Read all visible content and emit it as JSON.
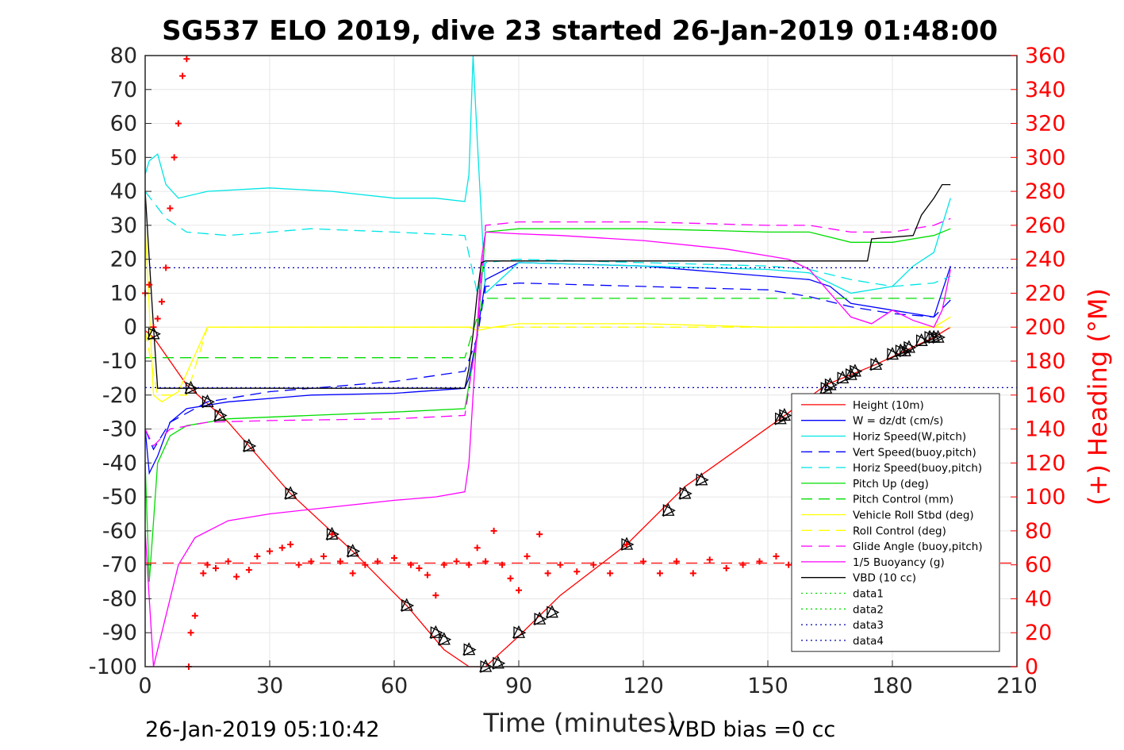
{
  "chart_data": {
    "type": "line",
    "title": "SG537 ELO 2019, dive 23 started 26-Jan-2019 01:48:00",
    "xlabel": "Time (minutes)",
    "ylabel_right": "(+) Heading (°M)",
    "xlim": [
      0,
      210
    ],
    "ylim": [
      -100,
      80
    ],
    "ylim_right": [
      0,
      360
    ],
    "x_ticks": [
      "0",
      "30",
      "60",
      "90",
      "120",
      "150",
      "180",
      "210"
    ],
    "y_ticks": [
      "-100",
      "-90",
      "-80",
      "-70",
      "-60",
      "-50",
      "-40",
      "-30",
      "-20",
      "-10",
      "0",
      "10",
      "20",
      "30",
      "40",
      "50",
      "60",
      "70",
      "80"
    ],
    "y_ticks_right": [
      "0",
      "20",
      "40",
      "60",
      "80",
      "100",
      "120",
      "140",
      "160",
      "180",
      "200",
      "220",
      "240",
      "260",
      "280",
      "300",
      "320",
      "340",
      "360"
    ],
    "grid": true,
    "legend_position": "bottom-right",
    "footer_left": "26-Jan-2019 05:10:42",
    "footer_right": "VBD bias =0 cc",
    "series": [
      {
        "name": "Height (10m)",
        "color": "#ff0000",
        "dash": "solid",
        "x": [
          0,
          2,
          10,
          20,
          35,
          50,
          63,
          72,
          78,
          82,
          90,
          100,
          116,
          130,
          153,
          164,
          176,
          183,
          190,
          194
        ],
        "y": [
          -1,
          -3,
          -17,
          -28,
          -49,
          -66,
          -82,
          -95,
          -100,
          -100,
          -91,
          -79,
          -64,
          -47,
          -27,
          -17,
          -11,
          -7,
          -3,
          0
        ]
      },
      {
        "name": "W = dz/dt (cm/s)",
        "color": "#0000ff",
        "dash": "solid",
        "x": [
          0,
          1,
          3,
          6,
          10,
          20,
          40,
          60,
          77,
          78,
          80,
          82,
          90,
          120,
          150,
          160,
          165,
          170,
          180,
          190,
          194
        ],
        "y": [
          -30,
          -43,
          -38,
          -28,
          -24,
          -22,
          -20,
          -19.5,
          -18,
          -15,
          -2,
          14,
          19,
          18,
          15,
          14,
          12,
          7,
          5,
          3,
          18
        ]
      },
      {
        "name": "Horiz Speed(W,pitch)",
        "color": "#00e5e5",
        "dash": "solid",
        "x": [
          0,
          1,
          3,
          5,
          8,
          15,
          30,
          45,
          60,
          70,
          77,
          78,
          79,
          80,
          82,
          90,
          120,
          150,
          160,
          170,
          180,
          185,
          190,
          194
        ],
        "y": [
          45,
          49,
          51,
          42,
          38,
          40,
          41,
          40,
          38,
          38,
          37,
          45,
          80,
          55,
          10,
          19,
          18,
          17,
          16,
          10,
          12,
          18,
          22,
          38
        ]
      },
      {
        "name": "Vert Speed(buoy,pitch)",
        "color": "#0000ff",
        "dash": "dashed",
        "x": [
          0,
          2,
          6,
          15,
          30,
          60,
          77,
          80,
          82,
          90,
          120,
          150,
          160,
          170,
          180,
          190,
          194
        ],
        "y": [
          -30,
          -36,
          -28,
          -22,
          -19,
          -16,
          -13,
          -3,
          12,
          13,
          12,
          11,
          9,
          6,
          4,
          3,
          8
        ]
      },
      {
        "name": "Horiz Speed(buoy,pitch)",
        "color": "#00e5e5",
        "dash": "dashed",
        "x": [
          0,
          5,
          10,
          20,
          40,
          60,
          77,
          80,
          82,
          90,
          120,
          150,
          160,
          170,
          180,
          190,
          194
        ],
        "y": [
          40,
          32,
          28,
          27,
          29,
          28,
          27,
          10,
          19,
          20,
          19,
          18,
          17,
          14,
          12,
          13,
          15
        ]
      },
      {
        "name": "Pitch Up (deg)",
        "color": "#00dd00",
        "dash": "solid",
        "x": [
          0,
          1,
          3,
          6,
          10,
          20,
          40,
          60,
          77,
          80,
          82,
          90,
          120,
          150,
          160,
          170,
          180,
          190,
          194
        ],
        "y": [
          -40,
          -75,
          -40,
          -32,
          -29,
          -27,
          -26,
          -25,
          -24,
          -3,
          28,
          29,
          29,
          28,
          28,
          25,
          25,
          27,
          29
        ]
      },
      {
        "name": "Pitch Control (mm)",
        "color": "#00dd00",
        "dash": "dashed",
        "x": [
          0,
          3,
          4,
          40,
          77,
          80,
          82,
          90,
          120,
          150,
          160,
          170,
          180,
          190,
          194
        ],
        "y": [
          -9,
          -9,
          -9,
          -9,
          -9,
          3,
          8.5,
          8.5,
          8.5,
          8.5,
          8.5,
          8.5,
          8.5,
          8.5,
          8.5
        ]
      },
      {
        "name": "Vehicle Roll Stbd (deg)",
        "color": "#ffff00",
        "dash": "solid",
        "x": [
          0,
          2,
          4,
          8,
          15,
          30,
          50,
          70,
          78,
          80,
          84,
          90,
          120,
          150,
          160,
          170,
          180,
          190,
          194
        ],
        "y": [
          30,
          -20,
          -22,
          -19,
          0,
          0,
          0,
          0,
          0,
          -1,
          0,
          1,
          1,
          0,
          0,
          0,
          0,
          0,
          3
        ]
      },
      {
        "name": "Roll Control (deg)",
        "color": "#ffff00",
        "dash": "dashed",
        "x": [
          0,
          3,
          6,
          10,
          15,
          30,
          60,
          78,
          80,
          82,
          90,
          120,
          150,
          165,
          180,
          194
        ],
        "y": [
          -1,
          -20,
          -20,
          -20,
          0,
          0,
          0,
          0,
          0,
          0,
          0,
          0,
          0,
          0,
          0,
          0
        ]
      },
      {
        "name": "Glide Angle (buoy,pitch)",
        "color": "#ff00ff",
        "dash": "dashed",
        "x": [
          0,
          2,
          6,
          15,
          30,
          60,
          77,
          80,
          82,
          90,
          120,
          150,
          160,
          165,
          170,
          180,
          190,
          194
        ],
        "y": [
          -30,
          -35,
          -30,
          -28,
          -27.5,
          -27,
          -26,
          -2,
          30,
          31,
          31,
          30,
          30,
          29,
          28,
          28,
          30,
          32
        ]
      },
      {
        "name": "1/5 Buoyancy (g)",
        "color": "#ff00ff",
        "dash": "solid",
        "x": [
          0,
          1,
          2,
          3,
          5,
          8,
          12,
          20,
          30,
          45,
          60,
          70,
          77,
          78,
          79,
          80,
          81,
          82,
          90,
          100,
          120,
          140,
          150,
          155,
          160,
          165,
          170,
          175,
          180,
          185,
          190,
          192,
          194
        ],
        "y": [
          -60,
          -80,
          -100,
          -95,
          -85,
          -70,
          -62,
          -57,
          -55,
          -53,
          -51,
          -50,
          -48.5,
          -40,
          -20,
          0,
          20,
          28,
          27.5,
          27,
          25.5,
          23,
          21,
          20,
          17,
          10,
          3,
          1,
          5,
          2,
          0,
          5,
          17
        ]
      },
      {
        "name": "VBD (10 cc)",
        "color": "#000000",
        "dash": "solid",
        "x": [
          0,
          1,
          2,
          3,
          40,
          77,
          78,
          79,
          80,
          81,
          82,
          90,
          120,
          150,
          160,
          174,
          175,
          185,
          187,
          190,
          192,
          194
        ],
        "y": [
          40,
          20,
          0,
          -18,
          -18,
          -18,
          -12,
          -2,
          10,
          19,
          19.5,
          19.5,
          19.5,
          19.5,
          19.5,
          19.5,
          26,
          27,
          33,
          38,
          42,
          42
        ]
      },
      {
        "name": "data1",
        "color": "#00dd00",
        "dash": "dotted",
        "x": [],
        "y": []
      },
      {
        "name": "data2",
        "color": "#00dd00",
        "dash": "dotted",
        "x": [],
        "y": []
      },
      {
        "name": "data3",
        "color": "#0000aa",
        "dash": "dotted",
        "x": [
          0,
          210
        ],
        "y": [
          17.5,
          17.5
        ]
      },
      {
        "name": "data4",
        "color": "#0000aa",
        "dash": "dotted",
        "x": [
          0,
          210
        ],
        "y": [
          -17.8,
          -17.8
        ]
      }
    ],
    "unlabeled_lines": [
      {
        "color": "#ff0000",
        "dash": "dashed",
        "axis": "left",
        "x": [
          0,
          210
        ],
        "y": [
          -69.5,
          -69.5
        ]
      }
    ],
    "heading_series": {
      "color": "#ff0000",
      "marker": "+",
      "axis": "right",
      "x": [
        0,
        1,
        2,
        3,
        4,
        5,
        6,
        7,
        8,
        9,
        10,
        10.5,
        11,
        12,
        14,
        15,
        17,
        20,
        22,
        25,
        27,
        30,
        33,
        35,
        37,
        40,
        43,
        45,
        47,
        50,
        53,
        56,
        60,
        64,
        66,
        68,
        70,
        72,
        75,
        78,
        80,
        82,
        84,
        86,
        88,
        90,
        92,
        95,
        97,
        100,
        104,
        108,
        112,
        116,
        120,
        124,
        128,
        132,
        136,
        140,
        144,
        148,
        152,
        155,
        160,
        165,
        170,
        175,
        180,
        185,
        190,
        194
      ],
      "y": [
        220,
        225,
        200,
        205,
        215,
        235,
        270,
        300,
        320,
        348,
        358,
        0,
        20,
        30,
        55,
        60,
        58,
        62,
        53,
        57,
        65,
        68,
        70,
        72,
        60,
        62,
        65,
        78,
        62,
        55,
        60,
        62,
        64,
        60,
        58,
        54,
        42,
        60,
        62,
        60,
        70,
        62,
        80,
        60,
        52,
        45,
        65,
        78,
        55,
        60,
        56,
        60,
        55,
        72,
        62,
        55,
        62,
        55,
        63,
        58,
        60,
        62,
        65,
        60,
        63,
        65,
        60,
        58,
        62,
        60,
        60,
        62
      ]
    },
    "triangle_markers": {
      "color": "#000000",
      "shape": "triangle",
      "x": [
        2,
        11,
        15,
        18,
        25,
        35,
        45,
        50,
        63,
        70,
        72,
        78,
        82,
        85,
        90,
        95,
        98,
        116,
        126,
        130,
        134,
        153,
        154,
        164,
        165,
        168,
        170,
        171,
        176,
        180,
        182,
        183,
        184,
        187,
        189,
        190,
        191
      ],
      "y": [
        -2,
        -18,
        -22,
        -26,
        -35,
        -49,
        -61,
        -66,
        -82,
        -90,
        -92,
        -95,
        -100,
        -99,
        -90,
        -86,
        -84,
        -64,
        -54,
        -49,
        -45,
        -27,
        -26,
        -18,
        -17,
        -15,
        -14,
        -13,
        -11,
        -8,
        -7,
        -7,
        -6,
        -4,
        -3,
        -3,
        -3
      ]
    }
  }
}
